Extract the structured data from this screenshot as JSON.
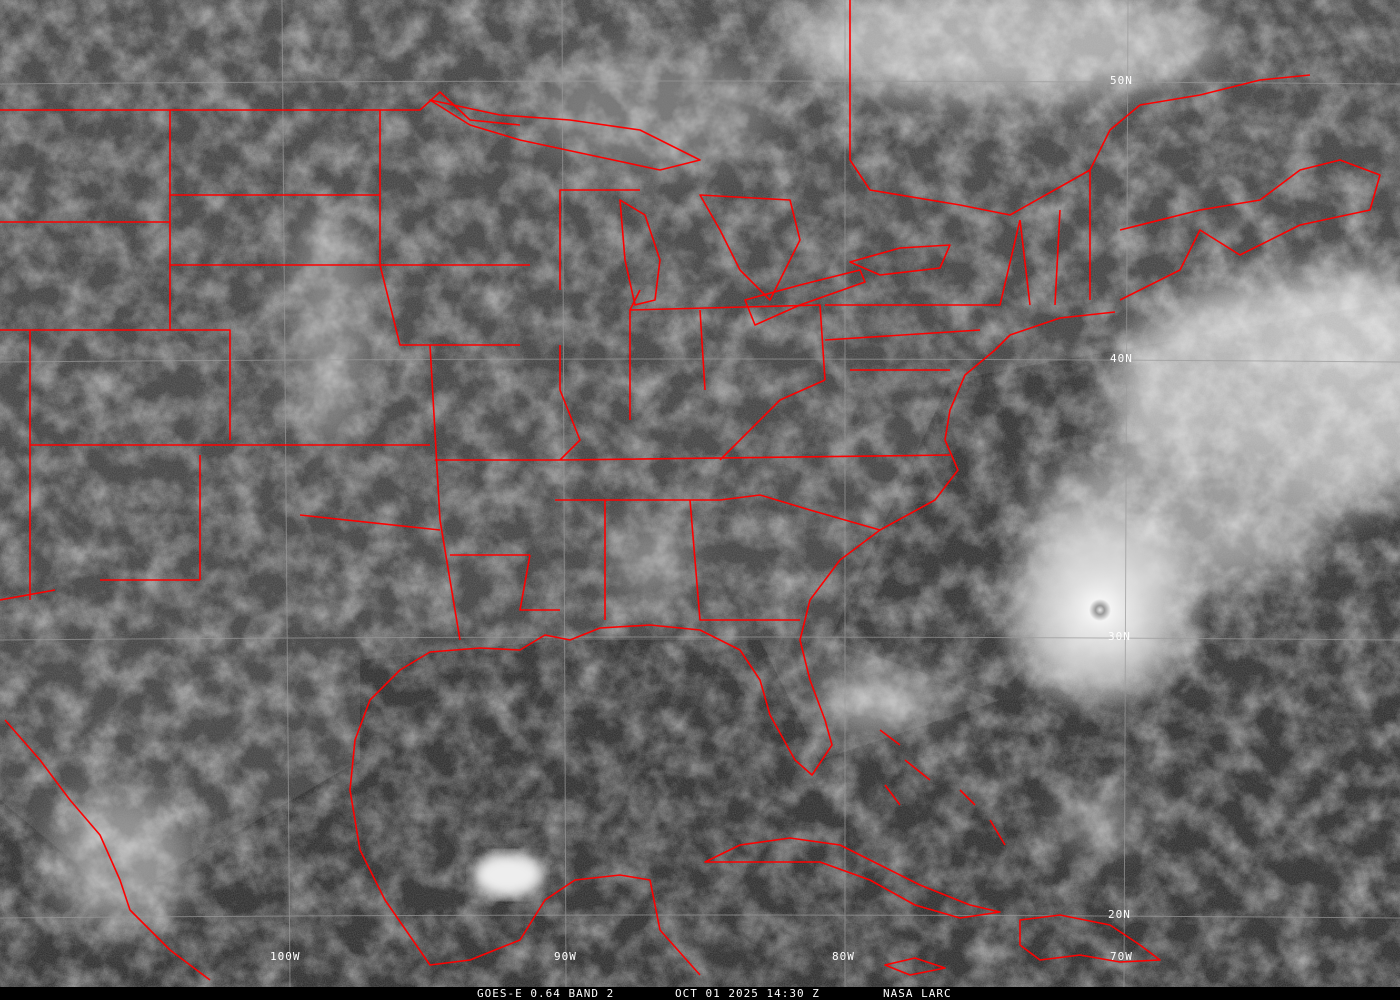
{
  "caption": {
    "satellite": "GOES-E 0.64 BAND 2",
    "datetime": "OCT 01 2025 14:30 Z",
    "source": "NASA LARC"
  },
  "latitude_labels": [
    "50N",
    "40N",
    "30N",
    "20N"
  ],
  "longitude_labels": [
    "100W",
    "90W",
    "80W",
    "70W"
  ],
  "colors": {
    "boundaries": "#ff0000",
    "gridlines": "#9a9a9a",
    "background": "#2e2e2e",
    "clouds": "#ffffff"
  }
}
